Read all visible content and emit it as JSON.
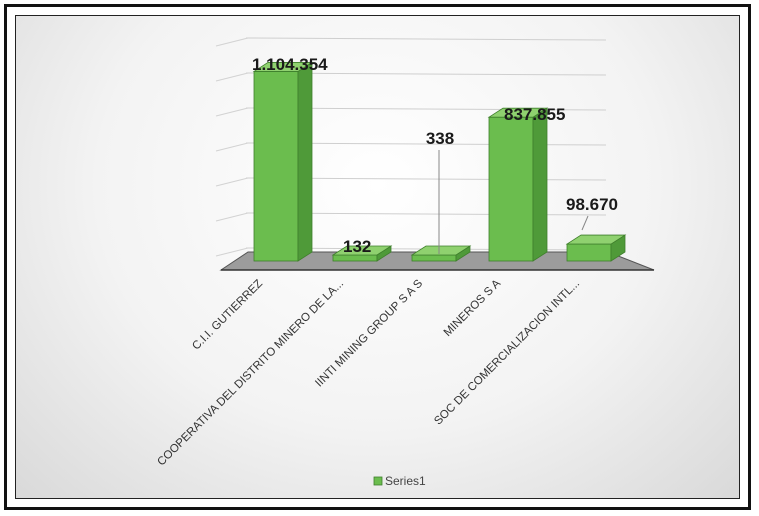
{
  "chart_data": {
    "type": "bar",
    "categories": [
      "C.I.I. GUTIERREZ",
      "COOPERATIVA DEL DISTRITO MINERO DE LA...",
      "IINTI MINING GROUP S A S",
      "MINEROS S A",
      "SOC DE COMERCIALIZACION INTL..."
    ],
    "series": [
      {
        "name": "Series1",
        "values": [
          1104354,
          132,
          338,
          837855,
          98670
        ]
      }
    ],
    "data_labels": [
      "1.104.354",
      "132",
      "338",
      "837.855",
      "98.670"
    ],
    "ylim": [
      0,
      1200000
    ],
    "grid": true,
    "legend": "bottom",
    "colors": {
      "bar_front": "#6bbd4e",
      "bar_side": "#4f9a39",
      "bar_top": "#8fd16f",
      "floor": "#9c9c9c",
      "floor_edge": "#555555"
    }
  }
}
